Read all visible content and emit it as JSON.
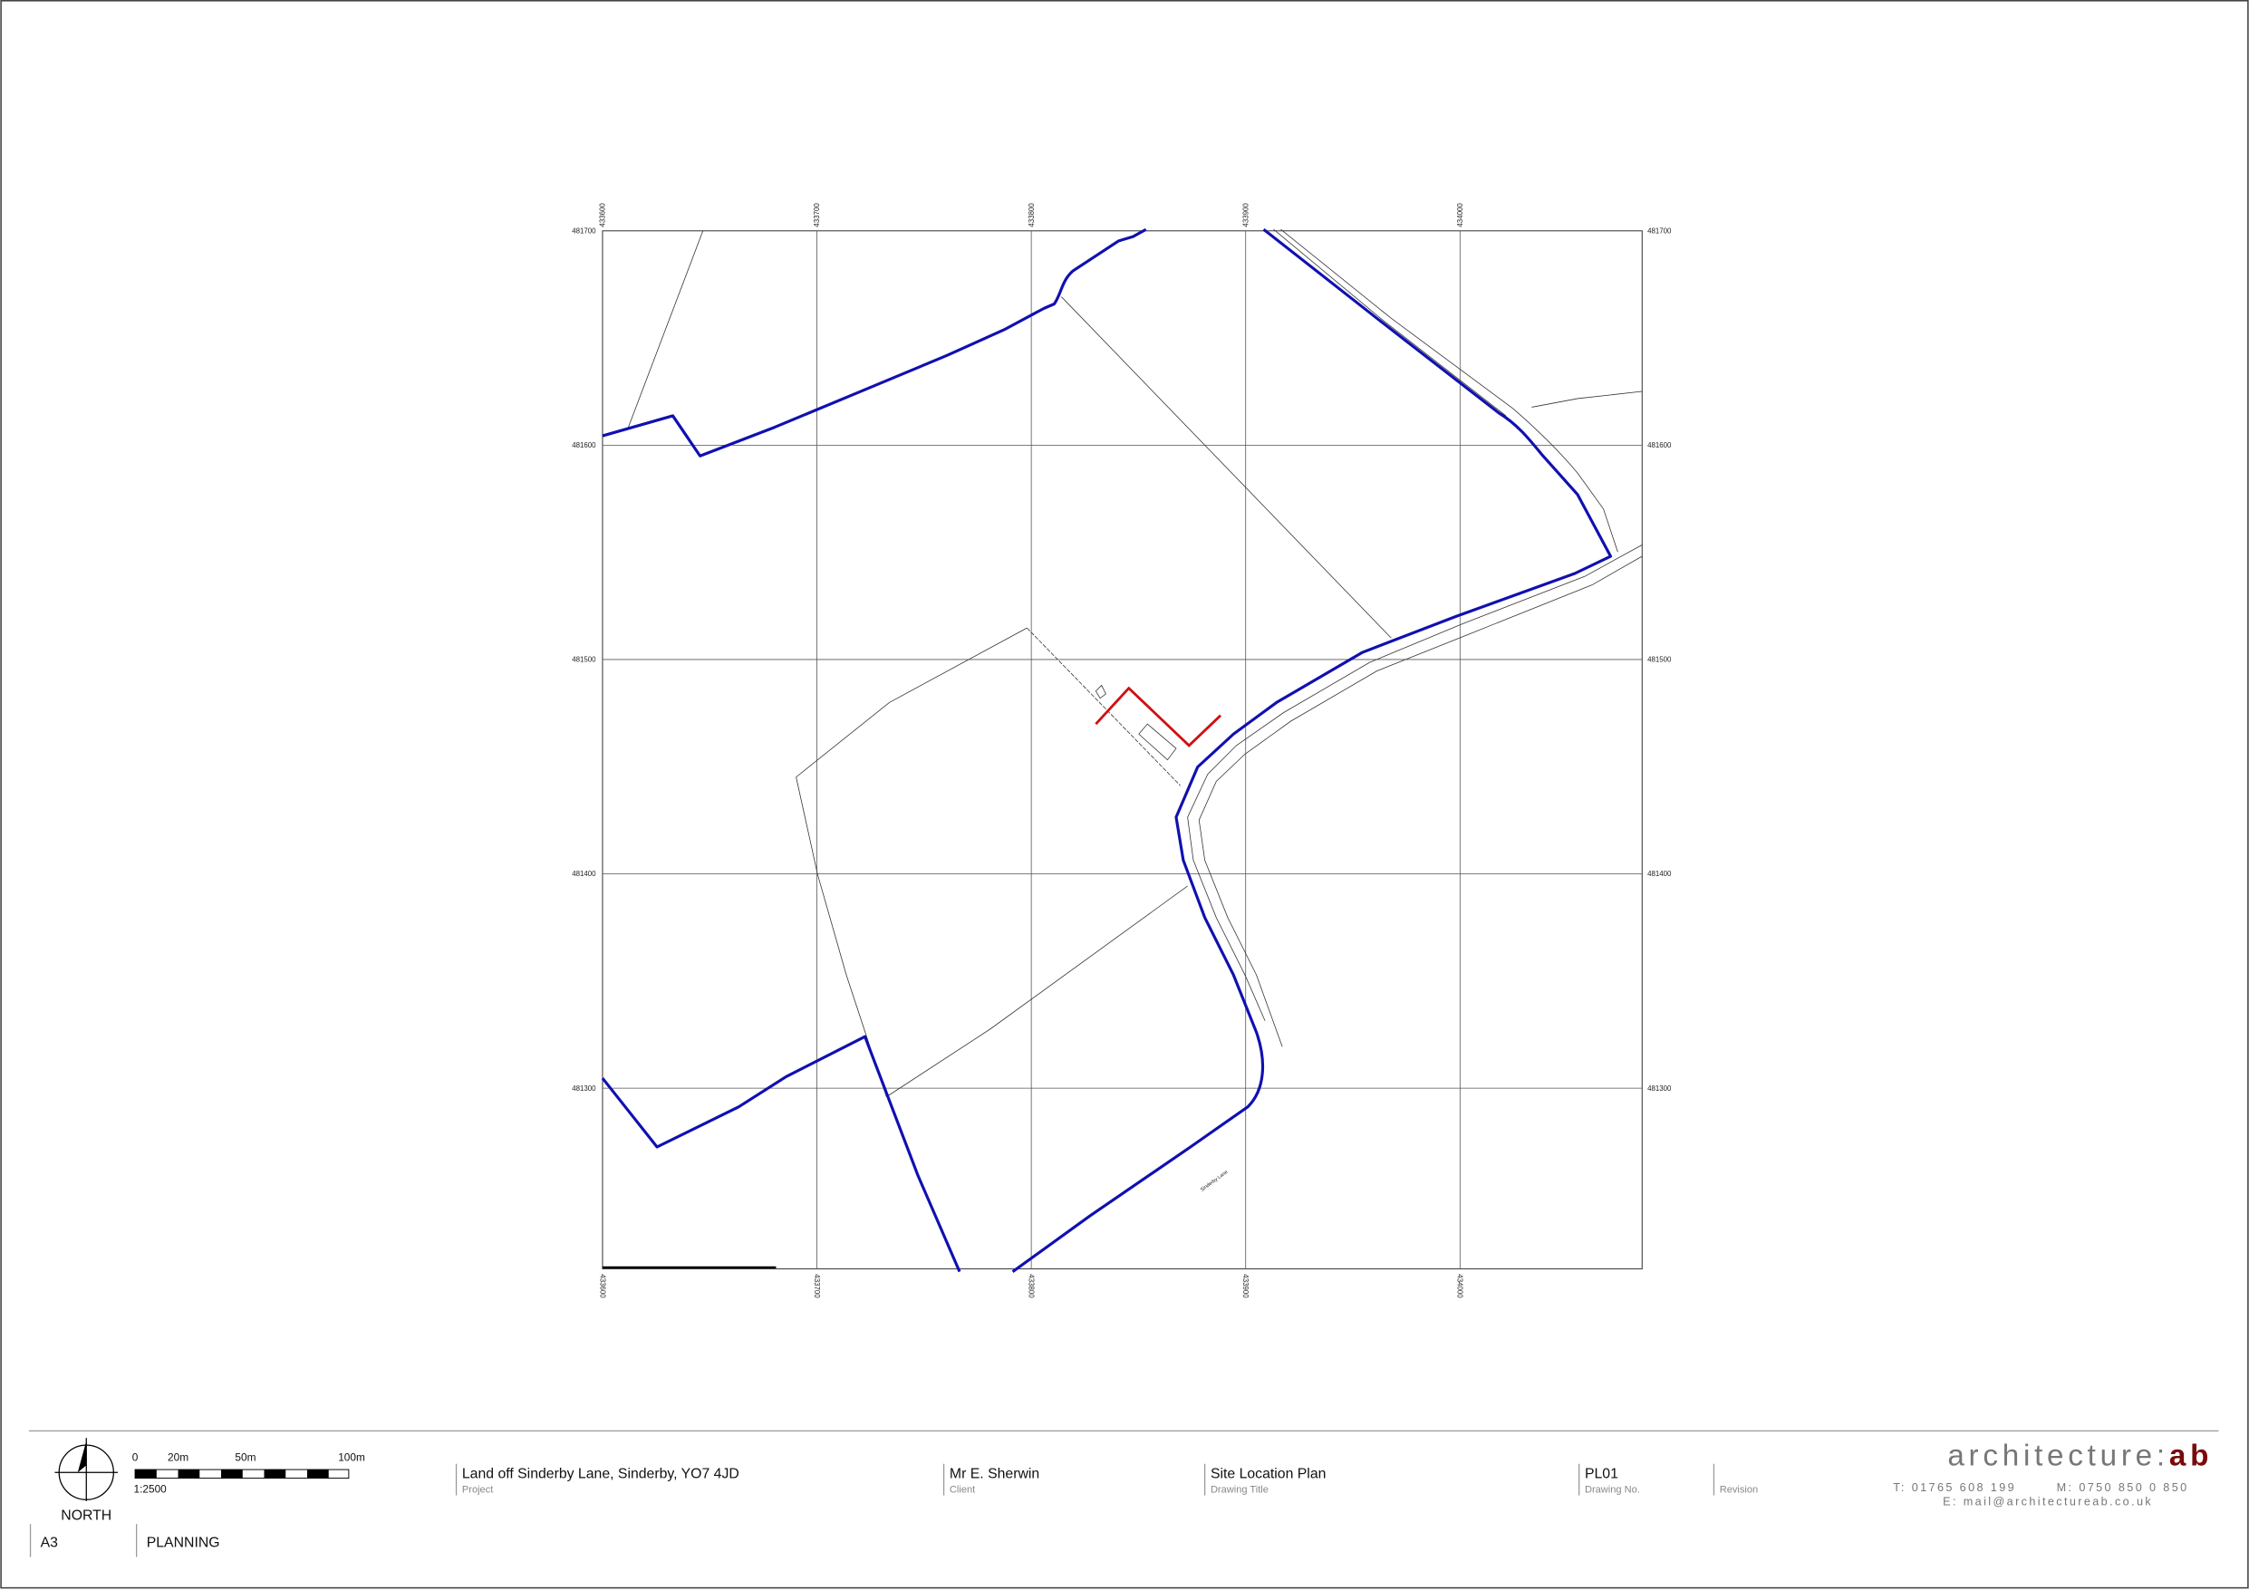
{
  "map": {
    "eastings": [
      "433600",
      "433700",
      "433800",
      "433900",
      "434000"
    ],
    "northings": [
      "481700",
      "481600",
      "481500",
      "481400",
      "481300"
    ],
    "road_label": "Sinderby Lane"
  },
  "title_block": {
    "north": "NORTH",
    "scale_bar": {
      "labels": [
        "0",
        "20m",
        "50m",
        "100m"
      ],
      "ratio": "1:2500"
    },
    "paper_size": "A3",
    "status": "PLANNING",
    "project": {
      "value": "Land off Sinderby Lane, Sinderby, YO7 4JD",
      "label": "Project"
    },
    "client": {
      "value": "Mr E. Sherwin",
      "label": "Client"
    },
    "drawing_title": {
      "value": "Site Location Plan",
      "label": "Drawing Title"
    },
    "drawing_no": {
      "value": "PL01",
      "label": "Drawing No."
    },
    "revision": {
      "label": "Revision"
    }
  },
  "logo": {
    "name": "architecture:",
    "initials": "ab",
    "phone": "T: 01765 608 199",
    "mobile": "M: 0750 850 0 850",
    "email": "E: mail@architectureab.co.uk"
  }
}
